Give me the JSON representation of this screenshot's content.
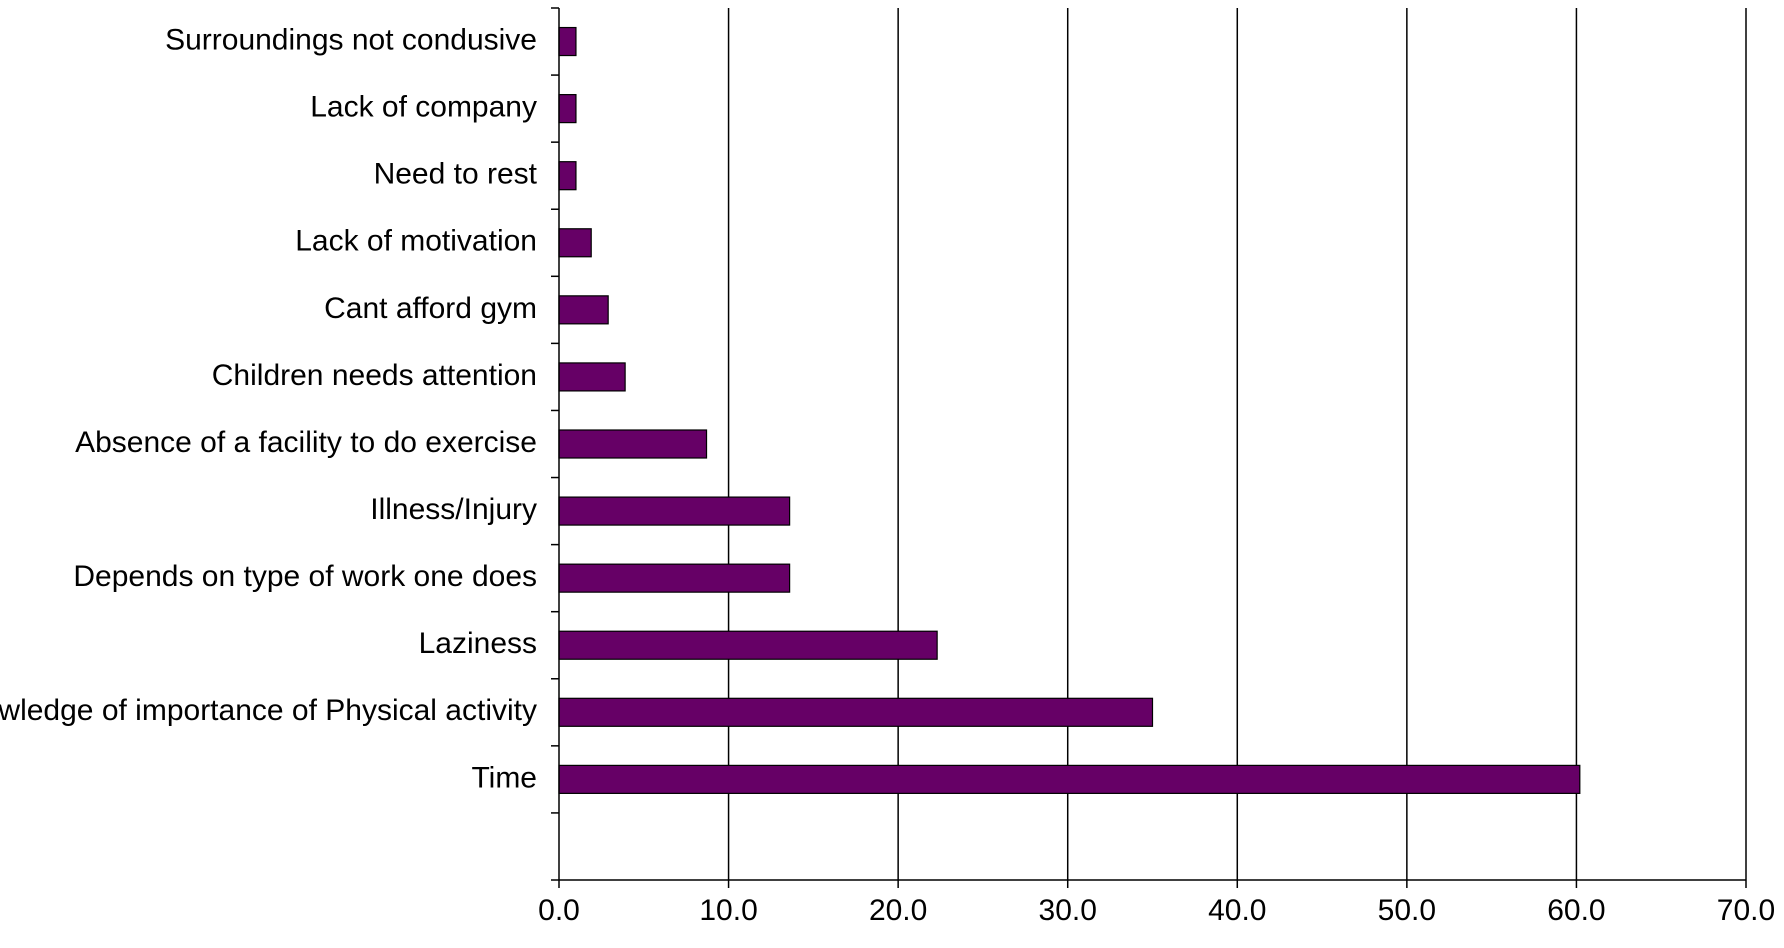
{
  "chart_data": {
    "type": "bar",
    "orientation": "horizontal",
    "categories": [
      "Surroundings not condusive",
      "Lack of company",
      "Need to rest",
      "Lack of motivation",
      "Cant afford gym",
      "Children needs attention",
      "Absence of a facility to do exercise",
      "Illness/Injury",
      "Depends on type of work one does",
      "Laziness",
      "Knowledge of importance of Physical activity",
      "Time"
    ],
    "values": [
      1.0,
      1.0,
      1.0,
      1.9,
      2.9,
      3.9,
      8.7,
      13.6,
      13.6,
      22.3,
      35.0,
      60.2
    ],
    "xlim": [
      0,
      70
    ],
    "xticks": [
      0,
      10,
      20,
      30,
      40,
      50,
      60,
      70
    ],
    "xtick_labels": [
      "0.0",
      "10.0",
      "20.0",
      "30.0",
      "40.0",
      "50.0",
      "60.0",
      "70.0"
    ],
    "title": "",
    "xlabel": "",
    "ylabel": "",
    "grid": "vertical major gridlines",
    "legend": "none",
    "bar_color": "#660066",
    "bar_edge_color": "#000000"
  }
}
